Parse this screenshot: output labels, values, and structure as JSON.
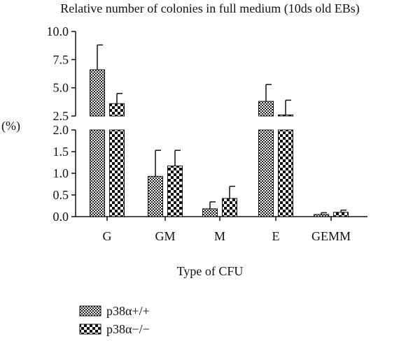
{
  "chart_data": {
    "type": "bar",
    "title": "Relative number of colonies in full medium (10ds old EBs)",
    "xlabel": "Type of CFU",
    "ylabel": "(%)",
    "categories": [
      "G",
      "GM",
      "M",
      "E",
      "GEMM"
    ],
    "axis_break": {
      "lower_range": [
        0,
        2.0
      ],
      "upper_range": [
        2.5,
        10.0
      ]
    },
    "ylim": [
      0,
      10.0
    ],
    "yticks_lower": [
      "0.0",
      "0.5",
      "1.0",
      "1.5",
      "2.0"
    ],
    "yticks_upper": [
      "2.5",
      "5.0",
      "7.5",
      "10.0"
    ],
    "legend_position": "bottom-left",
    "series": [
      {
        "name": "p38α+/+",
        "pattern": "fine-checker",
        "values": [
          6.6,
          0.93,
          0.18,
          3.8,
          0.05
        ],
        "errors": [
          2.2,
          0.6,
          0.16,
          1.5,
          0.04
        ]
      },
      {
        "name": "p38α−/−",
        "pattern": "coarse-checker",
        "values": [
          3.6,
          1.17,
          0.42,
          2.6,
          0.1
        ],
        "errors": [
          0.9,
          0.36,
          0.28,
          1.3,
          0.05
        ]
      }
    ]
  }
}
